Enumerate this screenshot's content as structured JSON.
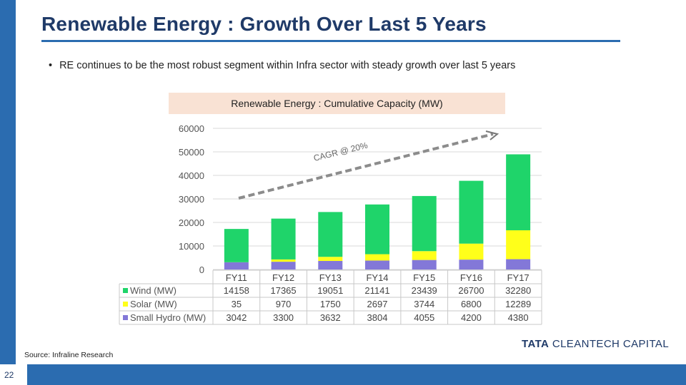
{
  "slide": {
    "title": "Renewable Energy : Growth Over Last 5 Years",
    "bullet": "RE continues to be the most robust segment within Infra sector with steady growth over last 5 years",
    "source": "Source: Infraline Research",
    "page_number": "22",
    "logo_brand": "TATA",
    "logo_rest": " CLEANTECH CAPITAL",
    "bar_color": "#2b6cb0"
  },
  "chart_data": {
    "type": "bar",
    "stacked": true,
    "title": "Renewable Energy : Cumulative Capacity (MW)",
    "categories": [
      "FY11",
      "FY12",
      "FY13",
      "FY14",
      "FY15",
      "FY16",
      "FY17"
    ],
    "series": [
      {
        "name": "Small Hydro (MW)",
        "values": [
          3042,
          3300,
          3632,
          3804,
          4055,
          4200,
          4380
        ],
        "color": "#8378d8"
      },
      {
        "name": "Solar (MW)",
        "values": [
          35,
          970,
          1750,
          2697,
          3744,
          6800,
          12289
        ],
        "color": "#ffff1a"
      },
      {
        "name": "Wind (MW)",
        "values": [
          14158,
          17365,
          19051,
          21141,
          23439,
          26700,
          32280
        ],
        "color": "#1fd46a"
      }
    ],
    "table_order": [
      "Wind (MW)",
      "Solar (MW)",
      "Small Hydro (MW)"
    ],
    "ylim": [
      0,
      60000
    ],
    "yticks": [
      0,
      10000,
      20000,
      30000,
      40000,
      50000,
      60000
    ],
    "grid": true,
    "legend": "data-table",
    "annotation": "CAGR @  20%"
  }
}
